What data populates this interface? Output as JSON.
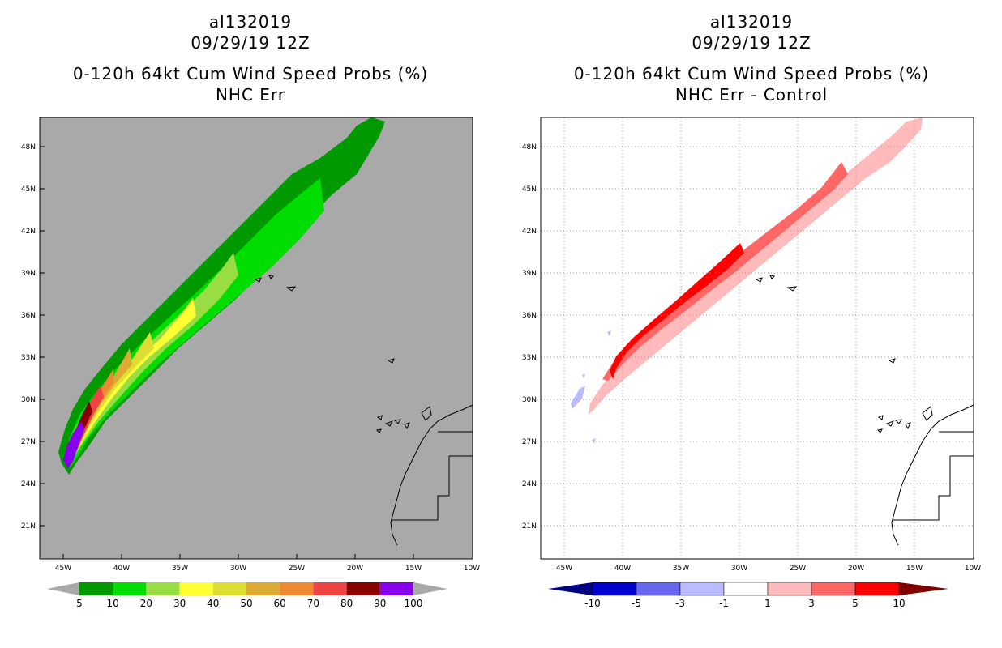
{
  "panels": [
    {
      "storm_id": "al132019",
      "datetime": "09/29/19 12Z",
      "title": "0-120h 64kt Cum Wind Speed Probs (%)",
      "subtitle": "NHC Err",
      "colorbar": {
        "labels": [
          "5",
          "10",
          "20",
          "30",
          "40",
          "50",
          "60",
          "70",
          "80",
          "90",
          "100"
        ],
        "colors": [
          "#009900",
          "#00dd00",
          "#99dd44",
          "#ffff33",
          "#dddd33",
          "#ddaa33",
          "#ee8833",
          "#ee4444",
          "#880000",
          "#8800ee"
        ]
      }
    },
    {
      "storm_id": "al132019",
      "datetime": "09/29/19 12Z",
      "title": "0-120h 64kt Cum Wind Speed Probs (%)",
      "subtitle": "NHC Err - Control",
      "colorbar": {
        "labels": [
          "-10",
          "-5",
          "-3",
          "-1",
          "1",
          "3",
          "5",
          "10"
        ],
        "colors": [
          "#0000cc",
          "#6666ee",
          "#bbbbff",
          "#ffffff",
          "#ffbbbb",
          "#ff6666",
          "#ff0000"
        ]
      }
    }
  ],
  "axes": {
    "lat_labels": [
      "48N",
      "45N",
      "42N",
      "39N",
      "36N",
      "33N",
      "30N",
      "27N",
      "24N",
      "21N"
    ],
    "lon_labels": [
      "45W",
      "40W",
      "35W",
      "30W",
      "25W",
      "20W",
      "15W",
      "10W"
    ]
  },
  "colors": {
    "ocean_gray": "#a9a9a9",
    "frame": "#000000"
  }
}
